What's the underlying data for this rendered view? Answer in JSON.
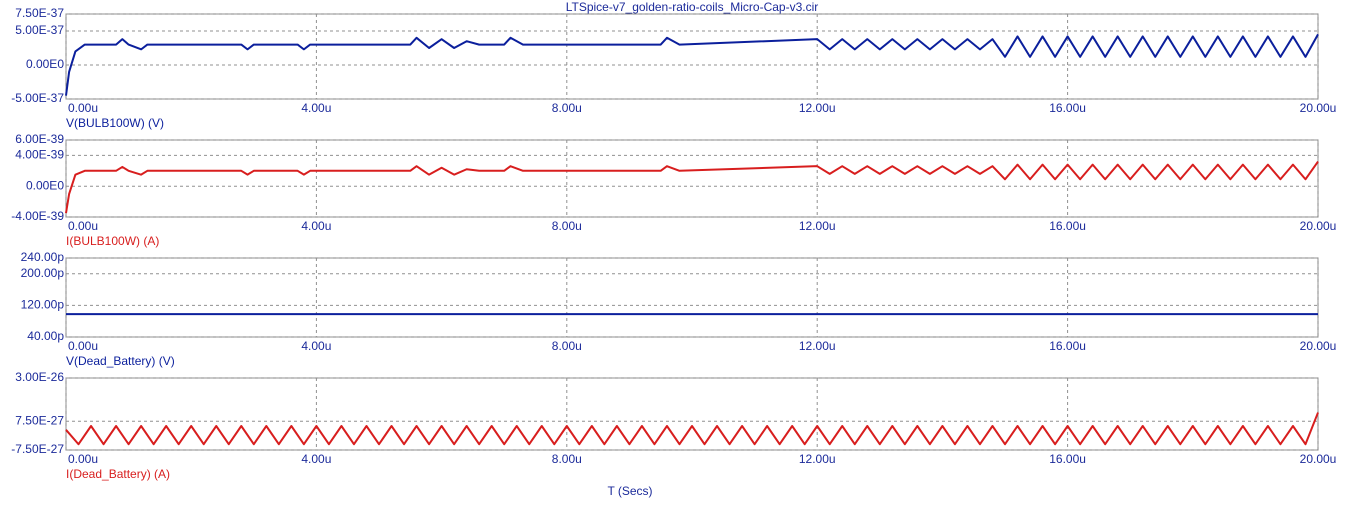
{
  "title": "LTSpice-v7_golden-ratio-coils_Micro-Cap-v3.cir",
  "x_label": "T (Secs)",
  "chart_data": [
    {
      "type": "line",
      "x": [
        0,
        0.05,
        0.15,
        0.3,
        0.8,
        0.9,
        1.0,
        1.2,
        1.3,
        2.8,
        2.9,
        3.0,
        3.7,
        3.8,
        3.9,
        5.5,
        5.6,
        5.8,
        6.0,
        6.2,
        6.4,
        6.6,
        7.0,
        7.1,
        7.3,
        9.5,
        9.6,
        9.8,
        12.0,
        12.2,
        12.4,
        12.6,
        12.8,
        13.0,
        13.2,
        13.4,
        13.6,
        13.8,
        14.0,
        14.2,
        14.4,
        14.6,
        14.8,
        15.0,
        15.2,
        15.4,
        15.6,
        15.8,
        16.0,
        16.2,
        16.4,
        16.6,
        16.8,
        17.0,
        17.2,
        17.4,
        17.6,
        17.8,
        18.0,
        18.2,
        18.4,
        18.6,
        18.8,
        19.0,
        19.2,
        19.4,
        19.6,
        19.8,
        20.0
      ],
      "series": [
        {
          "name": "V(BULB100W) (V)",
          "color": "#0b1f9c",
          "values": [
            -4.5e-37,
            -1e-37,
            2e-37,
            3e-37,
            3e-37,
            3.8e-37,
            3e-37,
            2.3e-37,
            3e-37,
            3e-37,
            2.3e-37,
            3e-37,
            3e-37,
            2.3e-37,
            3e-37,
            3e-37,
            4e-37,
            2.5e-37,
            3.8e-37,
            2.5e-37,
            3.5e-37,
            3e-37,
            3e-37,
            4e-37,
            3e-37,
            3e-37,
            4e-37,
            3e-37,
            3.8e-37,
            2.3e-37,
            3.8e-37,
            2.3e-37,
            3.8e-37,
            2.3e-37,
            3.8e-37,
            2.3e-37,
            3.8e-37,
            2.3e-37,
            3.8e-37,
            2.3e-37,
            3.8e-37,
            2.3e-37,
            3.8e-37,
            1.2e-37,
            4.2e-37,
            1.2e-37,
            4.2e-37,
            1.2e-37,
            4.2e-37,
            1.2e-37,
            4.2e-37,
            1.2e-37,
            4.2e-37,
            1.2e-37,
            4.2e-37,
            1.2e-37,
            4.2e-37,
            1.2e-37,
            4.2e-37,
            1.2e-37,
            4.2e-37,
            1.2e-37,
            4.2e-37,
            1.2e-37,
            4.2e-37,
            1.2e-37,
            4.2e-37,
            1.2e-37,
            4.5e-37
          ]
        }
      ],
      "xlim": [
        0,
        20
      ],
      "xticks": [
        {
          "value": 0,
          "label": "0.00u"
        },
        {
          "value": 4,
          "label": "4.00u"
        },
        {
          "value": 8,
          "label": "8.00u"
        },
        {
          "value": 12,
          "label": "12.00u"
        },
        {
          "value": 16,
          "label": "16.00u"
        },
        {
          "value": 20,
          "label": "20.00u"
        }
      ],
      "ylim": [
        -5e-37,
        7.5e-37
      ],
      "yticks": [
        {
          "value": 7.5e-37,
          "label": "7.50E-37"
        },
        {
          "value": 5e-37,
          "label": "5.00E-37"
        },
        {
          "value": 0,
          "label": "0.00E0"
        },
        {
          "value": -5e-37,
          "label": "-5.00E-37"
        }
      ],
      "grid": true
    },
    {
      "type": "line",
      "x": [
        0,
        0.05,
        0.15,
        0.3,
        0.8,
        0.9,
        1.0,
        1.2,
        1.3,
        2.8,
        2.9,
        3.0,
        3.7,
        3.8,
        3.9,
        5.5,
        5.6,
        5.8,
        6.0,
        6.2,
        6.4,
        6.6,
        7.0,
        7.1,
        7.3,
        9.5,
        9.6,
        9.8,
        12.0,
        12.2,
        12.4,
        12.6,
        12.8,
        13.0,
        13.2,
        13.4,
        13.6,
        13.8,
        14.0,
        14.2,
        14.4,
        14.6,
        14.8,
        15.0,
        15.2,
        15.4,
        15.6,
        15.8,
        16.0,
        16.2,
        16.4,
        16.6,
        16.8,
        17.0,
        17.2,
        17.4,
        17.6,
        17.8,
        18.0,
        18.2,
        18.4,
        18.6,
        18.8,
        19.0,
        19.2,
        19.4,
        19.6,
        19.8,
        20.0
      ],
      "series": [
        {
          "name": "I(BULB100W) (A)",
          "color": "#d81e1e",
          "values": [
            -3.5e-39,
            -1e-39,
            1.5e-39,
            2e-39,
            2e-39,
            2.5e-39,
            2e-39,
            1.5e-39,
            2e-39,
            2e-39,
            1.5e-39,
            2e-39,
            2e-39,
            1.5e-39,
            2e-39,
            2e-39,
            2.6e-39,
            1.5e-39,
            2.4e-39,
            1.5e-39,
            2.2e-39,
            2e-39,
            2e-39,
            2.6e-39,
            2e-39,
            2e-39,
            2.6e-39,
            2e-39,
            2.6e-39,
            1.6e-39,
            2.6e-39,
            1.6e-39,
            2.6e-39,
            1.6e-39,
            2.6e-39,
            1.6e-39,
            2.6e-39,
            1.6e-39,
            2.6e-39,
            1.6e-39,
            2.6e-39,
            1.6e-39,
            2.6e-39,
            9e-40,
            2.8e-39,
            9e-40,
            2.8e-39,
            9e-40,
            2.8e-39,
            9e-40,
            2.8e-39,
            9e-40,
            2.8e-39,
            9e-40,
            2.8e-39,
            9e-40,
            2.8e-39,
            9e-40,
            2.8e-39,
            9e-40,
            2.8e-39,
            9e-40,
            2.8e-39,
            9e-40,
            2.8e-39,
            9e-40,
            2.8e-39,
            9e-40,
            3.2e-39
          ]
        }
      ],
      "xlim": [
        0,
        20
      ],
      "xticks": [
        {
          "value": 0,
          "label": "0.00u"
        },
        {
          "value": 4,
          "label": "4.00u"
        },
        {
          "value": 8,
          "label": "8.00u"
        },
        {
          "value": 12,
          "label": "12.00u"
        },
        {
          "value": 16,
          "label": "16.00u"
        },
        {
          "value": 20,
          "label": "20.00u"
        }
      ],
      "ylim": [
        -4e-39,
        6e-39
      ],
      "yticks": [
        {
          "value": 6e-39,
          "label": "6.00E-39"
        },
        {
          "value": 4e-39,
          "label": "4.00E-39"
        },
        {
          "value": 0,
          "label": "0.00E0"
        },
        {
          "value": -4e-39,
          "label": "-4.00E-39"
        }
      ],
      "grid": true
    },
    {
      "type": "line",
      "x": [
        0,
        20
      ],
      "series": [
        {
          "name": "V(Dead_Battery) (V)",
          "color": "#0b1f9c",
          "values": [
            98,
            98
          ]
        }
      ],
      "xlim": [
        0,
        20
      ],
      "xticks": [
        {
          "value": 0,
          "label": "0.00u"
        },
        {
          "value": 4,
          "label": "4.00u"
        },
        {
          "value": 8,
          "label": "8.00u"
        },
        {
          "value": 12,
          "label": "12.00u"
        },
        {
          "value": 16,
          "label": "16.00u"
        },
        {
          "value": 20,
          "label": "20.00u"
        }
      ],
      "ylim": [
        40,
        240
      ],
      "yticks": [
        {
          "value": 240,
          "label": "240.00p"
        },
        {
          "value": 200,
          "label": "200.00p"
        },
        {
          "value": 120,
          "label": "120.00p"
        },
        {
          "value": 40,
          "label": "40.00p"
        }
      ],
      "grid": true
    },
    {
      "type": "line",
      "x": [
        0,
        0.2,
        0.4,
        0.6,
        0.8,
        1.0,
        1.2,
        1.4,
        1.6,
        1.8,
        2.0,
        2.2,
        2.4,
        2.6,
        2.8,
        3.0,
        3.2,
        3.4,
        3.6,
        3.8,
        4.0,
        4.2,
        4.4,
        4.6,
        4.8,
        5.0,
        5.2,
        5.4,
        5.6,
        5.8,
        6.0,
        6.2,
        6.4,
        6.6,
        6.8,
        7.0,
        7.2,
        7.4,
        7.6,
        7.8,
        8.0,
        8.2,
        8.4,
        8.6,
        8.8,
        9.0,
        9.2,
        9.4,
        9.6,
        9.8,
        10.0,
        10.2,
        10.4,
        10.6,
        10.8,
        11.0,
        11.2,
        11.4,
        11.6,
        11.8,
        12.0,
        12.2,
        12.4,
        12.6,
        12.8,
        13.0,
        13.2,
        13.4,
        13.6,
        13.8,
        14.0,
        14.2,
        14.4,
        14.6,
        14.8,
        15.0,
        15.2,
        15.4,
        15.6,
        15.8,
        16.0,
        16.2,
        16.4,
        16.6,
        16.8,
        17.0,
        17.2,
        17.4,
        17.6,
        17.8,
        18.0,
        18.2,
        18.4,
        18.6,
        18.8,
        19.0,
        19.2,
        19.4,
        19.6,
        19.8,
        20.0
      ],
      "series": [
        {
          "name": "I(Dead_Battery) (A)",
          "color": "#d81e1e",
          "values": [
            3e-27,
            -4.5e-27,
            5e-27,
            -4.5e-27,
            5e-27,
            -4.5e-27,
            5e-27,
            -4.5e-27,
            5e-27,
            -4.5e-27,
            5e-27,
            -4.5e-27,
            5e-27,
            -4.5e-27,
            5e-27,
            -4.5e-27,
            5e-27,
            -4.5e-27,
            5e-27,
            -4.5e-27,
            5e-27,
            -4.5e-27,
            5e-27,
            -4.5e-27,
            5e-27,
            -4.5e-27,
            5e-27,
            -4.5e-27,
            5e-27,
            -4.5e-27,
            5e-27,
            -4.5e-27,
            5e-27,
            -4.5e-27,
            5e-27,
            -4.5e-27,
            5e-27,
            -4.5e-27,
            5e-27,
            -4.5e-27,
            5e-27,
            -4.5e-27,
            5e-27,
            -4.5e-27,
            5e-27,
            -4.5e-27,
            5e-27,
            -4.5e-27,
            5e-27,
            -4.5e-27,
            5e-27,
            -4.5e-27,
            5e-27,
            -4.5e-27,
            5e-27,
            -4.5e-27,
            5e-27,
            -4.5e-27,
            5e-27,
            -4.5e-27,
            5e-27,
            -4.5e-27,
            5e-27,
            -4.5e-27,
            5e-27,
            -4.5e-27,
            5e-27,
            -4.5e-27,
            5e-27,
            -4.5e-27,
            5e-27,
            -4.5e-27,
            5e-27,
            -4.5e-27,
            5e-27,
            -4.5e-27,
            5e-27,
            -4.5e-27,
            5e-27,
            -4.5e-27,
            5e-27,
            -4.5e-27,
            5e-27,
            -4.5e-27,
            5e-27,
            -4.5e-27,
            5e-27,
            -4.5e-27,
            5e-27,
            -4.5e-27,
            5e-27,
            -4.5e-27,
            5e-27,
            -4.5e-27,
            5e-27,
            -4.5e-27,
            5e-27,
            -4.5e-27,
            5e-27,
            -4.5e-27,
            1.2e-26
          ]
        }
      ],
      "xlim": [
        0,
        20
      ],
      "xticks": [
        {
          "value": 0,
          "label": "0.00u"
        },
        {
          "value": 4,
          "label": "4.00u"
        },
        {
          "value": 8,
          "label": "8.00u"
        },
        {
          "value": 12,
          "label": "12.00u"
        },
        {
          "value": 16,
          "label": "16.00u"
        },
        {
          "value": 20,
          "label": "20.00u"
        }
      ],
      "ylim": [
        -7.5e-27,
        3e-26
      ],
      "yticks": [
        {
          "value": 3e-26,
          "label": "3.00E-26"
        },
        {
          "value": 7.5e-27,
          "label": "7.50E-27"
        },
        {
          "value": -7.5e-27,
          "label": "-7.50E-27"
        }
      ],
      "grid": true
    }
  ]
}
